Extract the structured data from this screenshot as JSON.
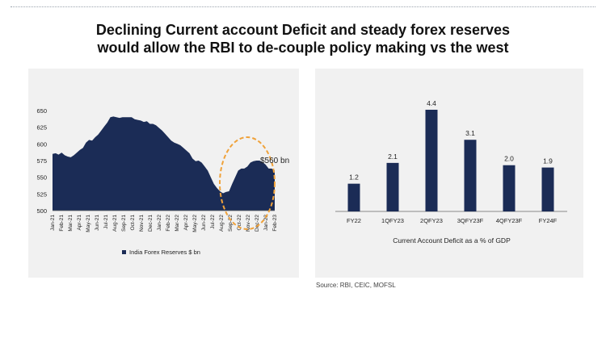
{
  "header": {
    "title_line1": "Declining Current account Deficit and steady forex reserves",
    "title_line2": "would allow the RBI to de-couple policy making vs the west"
  },
  "footer": {
    "source": "Source: RBI, CEIC, MOFSL"
  },
  "colors": {
    "navy": "#1b2c56",
    "panel_bg": "#f1f1f1",
    "highlight": "#f0a23a"
  },
  "chart_data": [
    {
      "type": "area",
      "title": "",
      "series": [
        {
          "name": "India Forex Reserves $ bn",
          "values": [
            585,
            586,
            584,
            587,
            583,
            581,
            580,
            583,
            587,
            591,
            594,
            602,
            606,
            605,
            610,
            614,
            620,
            626,
            632,
            640,
            641,
            640,
            639,
            640,
            640,
            640,
            640,
            637,
            636,
            635,
            633,
            634,
            630,
            630,
            628,
            624,
            620,
            615,
            610,
            605,
            602,
            600,
            598,
            594,
            590,
            586,
            578,
            574,
            575,
            572,
            566,
            560,
            550,
            540,
            534,
            529,
            526,
            528,
            529,
            540,
            550,
            560,
            563,
            563,
            566,
            572,
            574,
            575,
            575,
            573,
            569,
            563,
            563,
            560
          ]
        }
      ],
      "x_tick_labels": [
        "Jan-21",
        "Feb-21",
        "Mar-21",
        "Apr-21",
        "May-21",
        "Jun-21",
        "Jul-21",
        "Aug-21",
        "Sep-21",
        "Oct-21",
        "Nov-21",
        "Dec-21",
        "Jan-22",
        "Feb-22",
        "Mar-22",
        "Apr-22",
        "May-22",
        "Jun-22",
        "Jul-22",
        "Aug-22",
        "Sep-22",
        "Oct-22",
        "Nov-22",
        "Dec-22",
        "Jan-23",
        "Feb-23"
      ],
      "y_ticks": [
        "500",
        "525",
        "550",
        "575",
        "600",
        "625",
        "650"
      ],
      "ylim": [
        500,
        650
      ],
      "annotation": "$560 bn",
      "legend": "India Forex Reserves $ bn"
    },
    {
      "type": "bar",
      "title": "",
      "categories": [
        "FY22",
        "1QFY23",
        "2QFY23",
        "3QFY23F",
        "4QFY23F",
        "FY24F"
      ],
      "values": [
        1.2,
        2.1,
        4.4,
        3.1,
        2.0,
        1.9
      ],
      "value_labels": [
        "1.2",
        "2.1",
        "4.4",
        "3.1",
        "2.0",
        "1.9"
      ],
      "xlabel": "Current Account Deficit as a % of GDP",
      "ylim": [
        0,
        4.4
      ]
    }
  ]
}
